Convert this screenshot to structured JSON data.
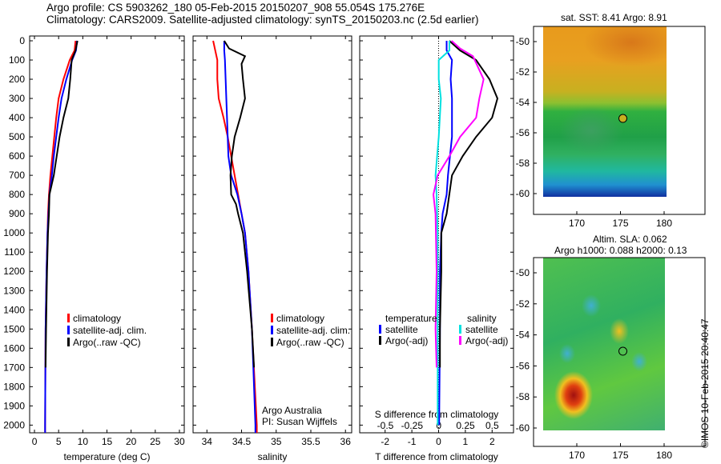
{
  "header": {
    "line1": "Argo profile: CS 5903262_180 05-Feb-2015 20150207_908 55.054S 175.276E",
    "line2": "Climatology: CARS2009. Satellite-adjusted climatology: synTS_20150203.nc (2.5d earlier)"
  },
  "credit": "©IMOS 10-Feb-2015 20:40:47",
  "chart_data": [
    {
      "type": "line",
      "xlabel": "temperature (deg C)",
      "ylabel": "",
      "xlim": [
        -1,
        31
      ],
      "ylim": [
        0,
        2040
      ],
      "y_reversed": true,
      "xticks": [
        0,
        5,
        10,
        15,
        20,
        25,
        30
      ],
      "yticks": [
        0,
        100,
        200,
        300,
        400,
        500,
        600,
        700,
        800,
        900,
        1000,
        1100,
        1200,
        1300,
        1400,
        1500,
        1600,
        1700,
        1800,
        1900,
        2000
      ],
      "legend": {
        "placement": "bottom-right",
        "entries": [
          "climatology",
          "satellite-adj. clim.",
          "Argo(..raw -QC)"
        ]
      },
      "series": [
        {
          "name": "climatology",
          "color": "#ff0000",
          "depth": [
            0,
            50,
            100,
            200,
            300,
            400,
            500,
            600,
            700,
            800,
            900,
            1000,
            1200,
            1500,
            2000,
            2040
          ],
          "values": [
            8.5,
            8.3,
            7.3,
            6.0,
            5.0,
            4.5,
            4.1,
            3.7,
            3.3,
            3.0,
            2.8,
            2.7,
            2.5,
            2.3,
            2.2,
            2.2
          ]
        },
        {
          "name": "satellite-adj. clim.",
          "color": "#0000ff",
          "depth": [
            0,
            50,
            100,
            200,
            300,
            400,
            500,
            600,
            700,
            800,
            900,
            1000,
            1200,
            1500,
            2000,
            2040
          ],
          "values": [
            8.8,
            8.6,
            7.8,
            6.6,
            5.6,
            5.0,
            4.5,
            4.0,
            3.6,
            3.1,
            2.9,
            2.7,
            2.5,
            2.3,
            2.2,
            2.2
          ]
        },
        {
          "name": "Argo(..raw -QC)",
          "color": "#000000",
          "depth": [
            0,
            50,
            100,
            200,
            300,
            400,
            500,
            600,
            700,
            800,
            900,
            1000,
            1200,
            1500,
            1700
          ],
          "values": [
            8.9,
            8.5,
            7.7,
            7.4,
            7.0,
            6.0,
            5.2,
            4.6,
            4.0,
            3.1,
            3.0,
            2.8,
            2.6,
            2.4,
            2.3
          ]
        }
      ]
    },
    {
      "type": "line",
      "xlabel": "salinity",
      "ylabel": "",
      "xlim": [
        33.8,
        36.09
      ],
      "ylim": [
        0,
        2040
      ],
      "y_reversed": true,
      "xticks": [
        34,
        34.5,
        35,
        35.5,
        36
      ],
      "legend": {
        "placement": "bottom-right",
        "entries": [
          "climatology",
          "satellite-adj. clim.",
          "Argo(..raw -QC)"
        ]
      },
      "annotation": [
        "Argo Australia",
        "PI: Susan Wijffels"
      ],
      "series": [
        {
          "name": "climatology",
          "color": "#ff0000",
          "depth": [
            0,
            50,
            100,
            200,
            300,
            400,
            500,
            600,
            700,
            800,
            900,
            1000,
            1200,
            1500,
            2000,
            2040
          ],
          "values": [
            34.09,
            34.12,
            34.15,
            34.15,
            34.17,
            34.24,
            34.3,
            34.35,
            34.4,
            34.45,
            34.5,
            34.55,
            34.6,
            34.65,
            34.72,
            34.72
          ]
        },
        {
          "name": "satellite-adj. clim.",
          "color": "#0000ff",
          "depth": [
            0,
            50,
            100,
            200,
            300,
            400,
            500,
            600,
            700,
            800,
            900,
            1000,
            1200,
            1500,
            2000,
            2040
          ],
          "values": [
            34.25,
            34.25,
            34.26,
            34.27,
            34.28,
            34.29,
            34.3,
            34.31,
            34.35,
            34.44,
            34.5,
            34.55,
            34.6,
            34.65,
            34.7,
            34.7
          ]
        },
        {
          "name": "Argo(..raw -QC)",
          "color": "#000000",
          "depth": [
            0,
            40,
            80,
            120,
            200,
            300,
            400,
            500,
            600,
            700,
            800,
            850,
            900,
            1000,
            1200,
            1500,
            1700
          ],
          "values": [
            34.25,
            34.32,
            34.55,
            34.5,
            34.52,
            34.55,
            34.48,
            34.4,
            34.36,
            34.34,
            34.35,
            34.42,
            34.45,
            34.52,
            34.58,
            34.65,
            34.68
          ]
        }
      ]
    },
    {
      "type": "line",
      "xlabel": "T difference from climatology",
      "x2label": "S difference from climatology",
      "xlim": [
        -2.95,
        2.8
      ],
      "x2lim": [
        -0.74,
        0.7
      ],
      "ylim": [
        0,
        2040
      ],
      "y_reversed": true,
      "xticks": [
        -2,
        -1,
        0,
        1,
        2
      ],
      "x2ticks": [
        -0.5,
        -0.25,
        0,
        0.25,
        0.5
      ],
      "legend": {
        "placement": "bottom",
        "temperature_title": "temperature",
        "salinity_title": "salinity",
        "entries": [
          "satellite",
          "Argo(-adj)",
          "satellite",
          "Argo(-adj)"
        ]
      },
      "series": [
        {
          "name": "T satellite",
          "axis": "T",
          "color": "#0000ff",
          "depth": [
            0,
            50,
            100,
            200,
            300,
            500,
            700,
            800,
            900,
            1000,
            1200,
            1500,
            2000
          ],
          "values": [
            0.3,
            0.3,
            0.5,
            0.45,
            0.5,
            0.5,
            0.35,
            0.3,
            0.15,
            0.1,
            0.05,
            0.05,
            0.02
          ]
        },
        {
          "name": "T Argo(-adj)",
          "axis": "T",
          "color": "#000000",
          "depth": [
            0,
            50,
            100,
            200,
            300,
            400,
            500,
            600,
            700,
            800,
            900,
            1000,
            1200,
            1500,
            1700
          ],
          "values": [
            0.4,
            0.8,
            1.4,
            1.9,
            2.2,
            2.0,
            1.4,
            0.9,
            0.5,
            0.4,
            0.3,
            0.1,
            0.1,
            0.05,
            0.05
          ]
        },
        {
          "name": "S satellite",
          "axis": "S",
          "color": "#00e0e0",
          "depth": [
            0,
            50,
            100,
            200,
            300,
            500,
            700,
            800,
            1000,
            1500,
            2000
          ],
          "values": [
            0.1,
            0.1,
            0.0,
            0.0,
            0.02,
            0.0,
            -0.03,
            -0.02,
            -0.01,
            -0.01,
            -0.01
          ]
        },
        {
          "name": "S Argo(-adj)",
          "axis": "S",
          "color": "#ff00ff",
          "depth": [
            0,
            40,
            80,
            200,
            300,
            400,
            500,
            600,
            700,
            800,
            900,
            1200,
            1500,
            1700
          ],
          "values": [
            0.12,
            0.2,
            0.32,
            0.42,
            0.38,
            0.35,
            0.2,
            0.1,
            -0.01,
            -0.05,
            -0.03,
            -0.02,
            -0.03,
            -0.02
          ]
        }
      ]
    },
    {
      "type": "heatmap",
      "title": "sat. SST: 8.41  Argo: 8.91",
      "xlim": [
        166,
        184
      ],
      "ylim": [
        -61,
        -49
      ],
      "xticks": [
        170,
        175,
        180
      ],
      "yticks": [
        -50,
        -52,
        -54,
        -56,
        -58,
        -60
      ],
      "marker": [
        175.276,
        -55.054
      ]
    },
    {
      "type": "heatmap",
      "title": "Altim. SLA: 0.062",
      "subtitle": "Argo h1000: 0.088  h2000: 0.13",
      "xlim": [
        166,
        184
      ],
      "ylim": [
        -61,
        -49
      ],
      "xticks": [
        170,
        175,
        180
      ],
      "yticks": [
        -50,
        -52,
        -54,
        -56,
        -58,
        -60
      ],
      "marker": [
        175.276,
        -55.054
      ]
    }
  ]
}
